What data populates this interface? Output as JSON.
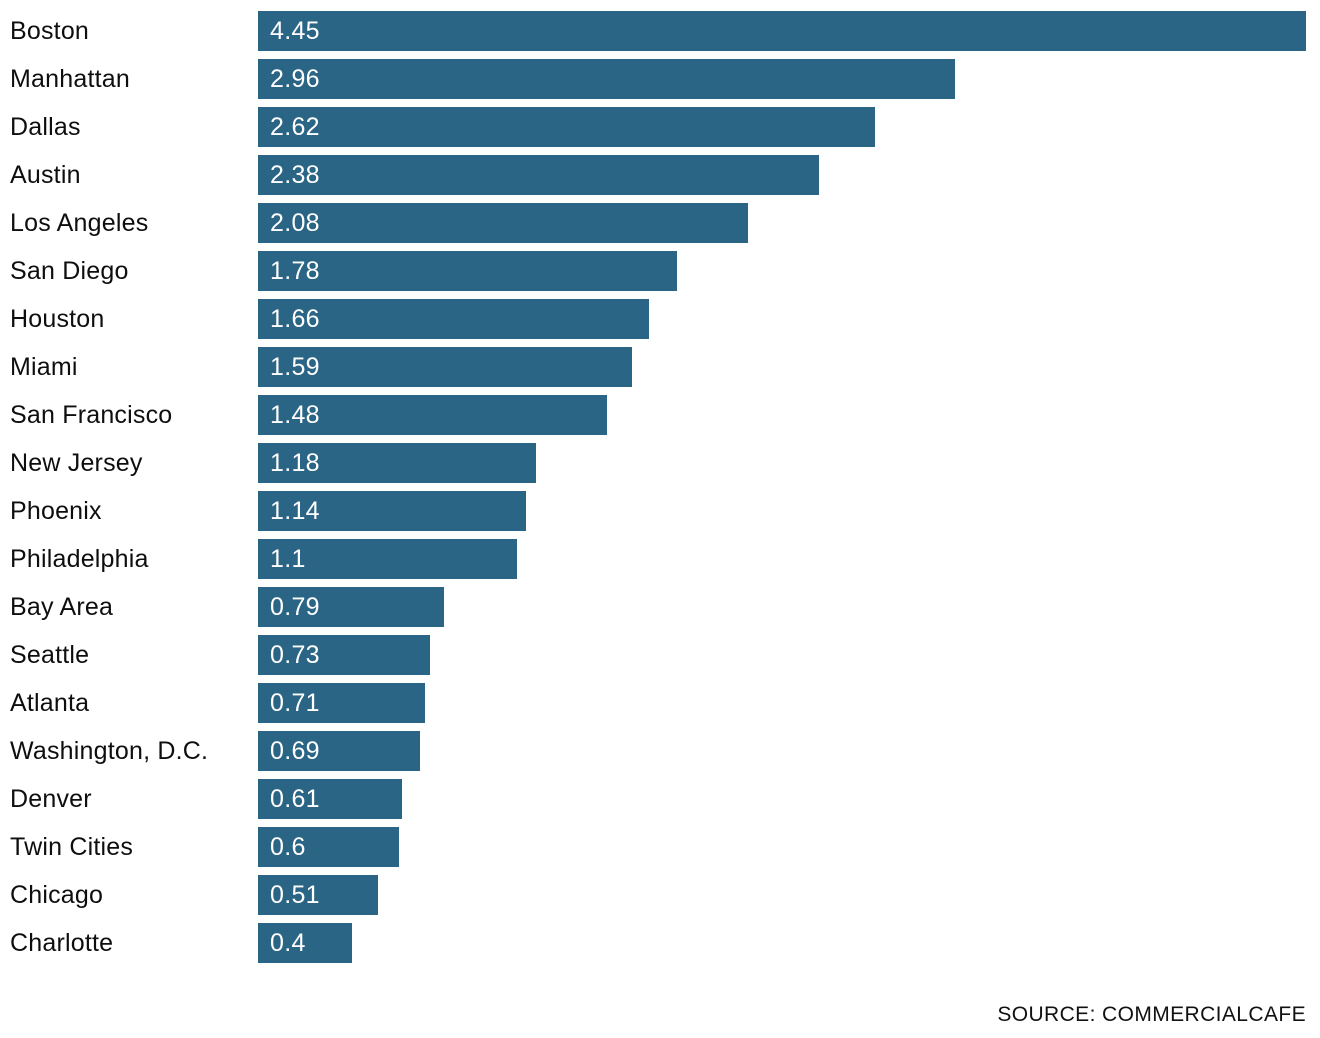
{
  "chart_data": {
    "type": "bar",
    "orientation": "horizontal",
    "title": "",
    "xlabel": "",
    "ylabel": "",
    "xlim": [
      0,
      4.45
    ],
    "grid": false,
    "legend": false,
    "bar_color": "#2a6585",
    "label_color": "#0e0e0e",
    "value_text_color": "#ffffff",
    "categories": [
      "Boston",
      "Manhattan",
      "Dallas",
      "Austin",
      "Los Angeles",
      "San Diego",
      "Houston",
      "Miami",
      "San Francisco",
      "New Jersey",
      "Phoenix",
      "Philadelphia",
      "Bay Area",
      "Seattle",
      "Atlanta",
      "Washington, D.C.",
      "Denver",
      "Twin Cities",
      "Chicago",
      "Charlotte"
    ],
    "values": [
      4.45,
      2.96,
      2.62,
      2.38,
      2.08,
      1.78,
      1.66,
      1.59,
      1.48,
      1.18,
      1.14,
      1.1,
      0.79,
      0.73,
      0.71,
      0.69,
      0.61,
      0.6,
      0.51,
      0.4
    ],
    "value_labels": [
      "4.45",
      "2.96",
      "2.62",
      "2.38",
      "2.08",
      "1.78",
      "1.66",
      "1.59",
      "1.48",
      "1.18",
      "1.14",
      "1.1",
      "0.79",
      "0.73",
      "0.71",
      "0.69",
      "0.61",
      "0.6",
      "0.51",
      "0.4"
    ]
  },
  "footer": {
    "source": "SOURCE: COMMERCIALCAFE"
  }
}
